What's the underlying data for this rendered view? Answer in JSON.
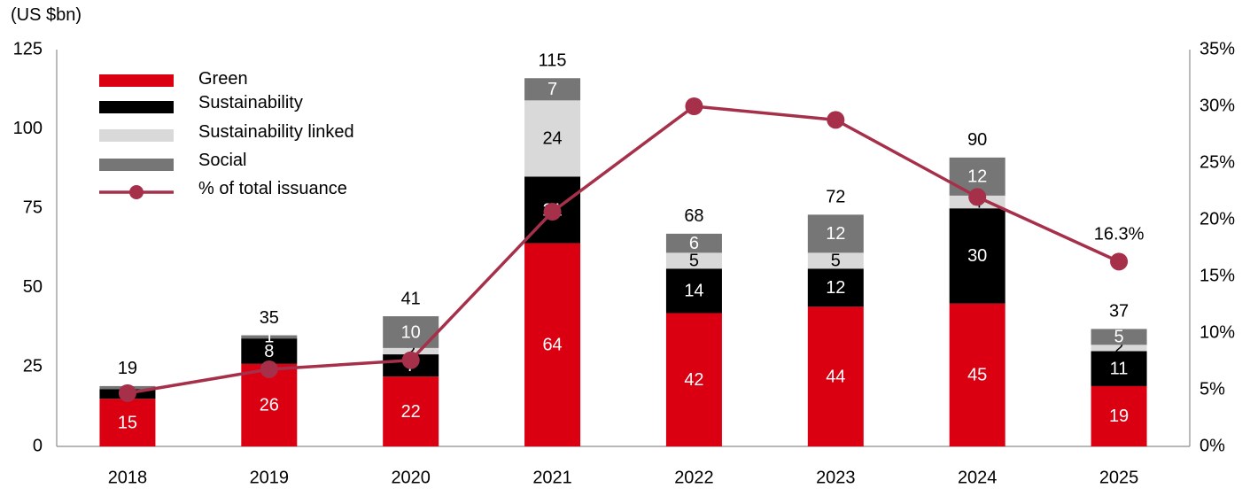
{
  "chart_data": {
    "type": "bar",
    "unit_label": "(US $bn)",
    "categories": [
      "2018",
      "2019",
      "2020",
      "2021",
      "2022",
      "2023",
      "2024",
      "2025"
    ],
    "series": [
      {
        "name": "Green",
        "color": "#db0011",
        "values": [
          15,
          26,
          22,
          64,
          42,
          44,
          45,
          19
        ],
        "label_color": "#ffffff"
      },
      {
        "name": "Sustainability",
        "color": "#000000",
        "values": [
          3,
          8,
          7,
          21,
          14,
          12,
          30,
          11
        ],
        "label_color": "#ffffff"
      },
      {
        "name": "Sustainability linked",
        "color": "#d9d9d9",
        "values": [
          0,
          0,
          2,
          24,
          5,
          5,
          4,
          2
        ],
        "label_color": "#000000"
      },
      {
        "name": "Social",
        "color": "#767676",
        "values": [
          1,
          1,
          10,
          7,
          6,
          12,
          12,
          5
        ],
        "label_color": "#ffffff"
      }
    ],
    "totals": [
      "19",
      "35",
      "41",
      "115",
      "68",
      "72",
      "90",
      "37"
    ],
    "line_series": {
      "name": "% of total issuance",
      "color": "#a6304a",
      "values": [
        4.7,
        6.8,
        7.6,
        20.7,
        30.0,
        28.8,
        22.0,
        16.3
      ],
      "annotation": "16.3%"
    },
    "y_left": {
      "min": 0,
      "max": 125,
      "ticks": [
        "0",
        "25",
        "50",
        "75",
        "100",
        "125"
      ]
    },
    "y_right": {
      "min": 0,
      "max": 35,
      "ticks": [
        "0%",
        "5%",
        "10%",
        "15%",
        "20%",
        "25%",
        "30%",
        "35%"
      ]
    },
    "legend_position": "top-left",
    "grid": false
  }
}
